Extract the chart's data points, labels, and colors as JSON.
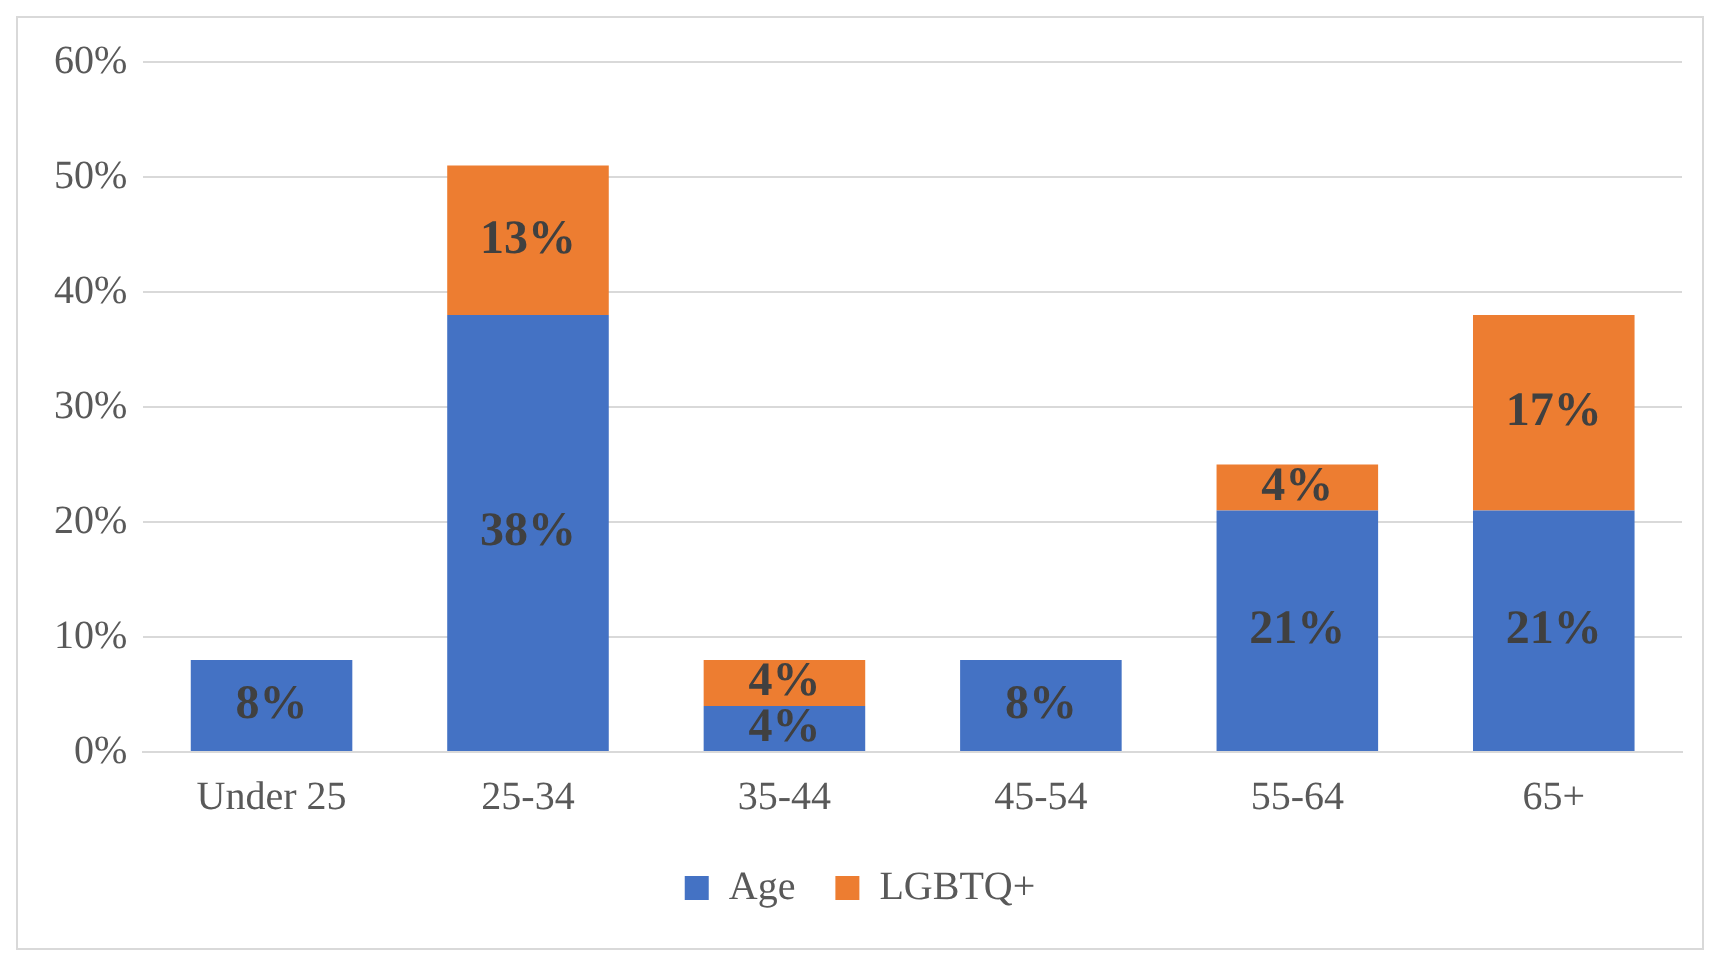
{
  "chart_data": {
    "type": "bar",
    "stacked": true,
    "categories": [
      "Under 25",
      "25-34",
      "35-44",
      "45-54",
      "55-64",
      "65+"
    ],
    "series": [
      {
        "name": "Age",
        "color": "#4472c4",
        "values": [
          8,
          38,
          4,
          8,
          21,
          21
        ],
        "value_labels": [
          "8%",
          "38%",
          "4%",
          "8%",
          "21%",
          "21%"
        ]
      },
      {
        "name": "LGBTQ+",
        "color": "#ed7d31",
        "values": [
          null,
          13,
          4,
          null,
          4,
          17
        ],
        "value_labels": [
          null,
          "13%",
          "4%",
          null,
          "4%",
          "17%"
        ]
      }
    ],
    "ylim": [
      0,
      60
    ],
    "yticks": [
      {
        "value": 0,
        "label": "0%"
      },
      {
        "value": 10,
        "label": "10%"
      },
      {
        "value": 20,
        "label": "20%"
      },
      {
        "value": 30,
        "label": "30%"
      },
      {
        "value": 40,
        "label": "40%"
      },
      {
        "value": 50,
        "label": "50%"
      },
      {
        "value": 60,
        "label": "60%"
      }
    ],
    "grid": "y",
    "legend": "bottom"
  }
}
